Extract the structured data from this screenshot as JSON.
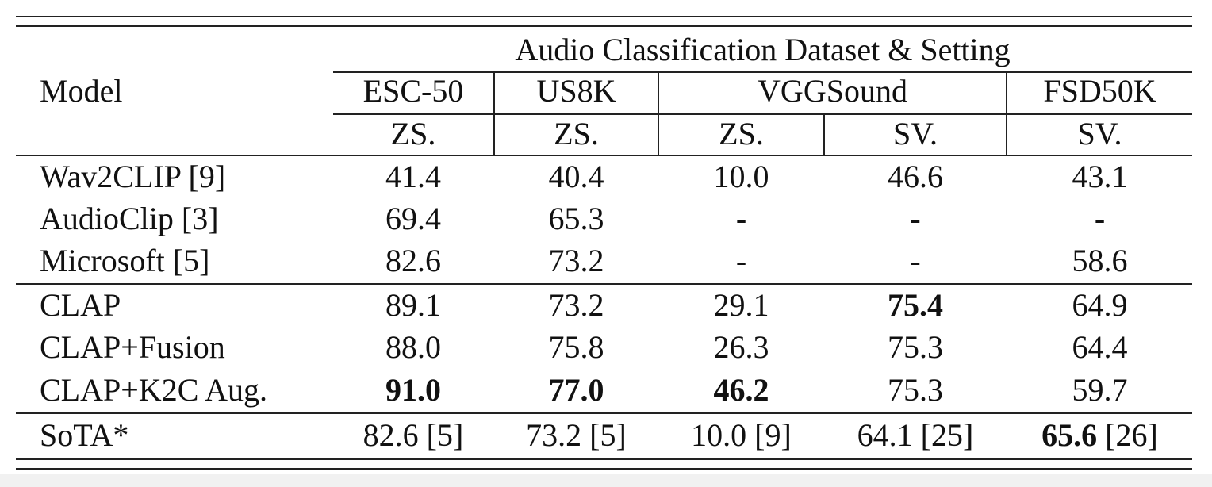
{
  "table": {
    "header": {
      "model_label": "Model",
      "group_label": "Audio Classification Dataset & Setting",
      "datasets": [
        "ESC-50",
        "US8K",
        "VGGSound",
        "FSD50K"
      ],
      "settings": [
        "ZS.",
        "ZS.",
        "ZS.",
        "SV.",
        "SV."
      ]
    },
    "rows": [
      {
        "model": "Wav2CLIP [9]",
        "values": [
          "41.4",
          "40.4",
          "10.0",
          "46.6",
          "43.1"
        ]
      },
      {
        "model": "AudioClip [3]",
        "values": [
          "69.4",
          "65.3",
          "-",
          "-",
          "-"
        ]
      },
      {
        "model": "Microsoft [5]",
        "values": [
          "82.6",
          "73.2",
          "-",
          "-",
          "58.6"
        ]
      },
      {
        "model": "CLAP",
        "values": [
          "89.1",
          "73.2",
          "29.1",
          "75.4",
          "64.9"
        ]
      },
      {
        "model": "CLAP+Fusion",
        "values": [
          "88.0",
          "75.8",
          "26.3",
          "75.3",
          "64.4"
        ]
      },
      {
        "model": "CLAP+K2C Aug.",
        "values": [
          "91.0",
          "77.0",
          "46.2",
          "75.3",
          "59.7"
        ]
      }
    ],
    "sota": {
      "model": "SoTA*",
      "values": [
        "82.6",
        "73.2",
        "10.0",
        "64.1",
        "65.6"
      ],
      "refs": [
        "[5]",
        "[5]",
        "[9]",
        "[25]",
        "[26]"
      ]
    }
  }
}
